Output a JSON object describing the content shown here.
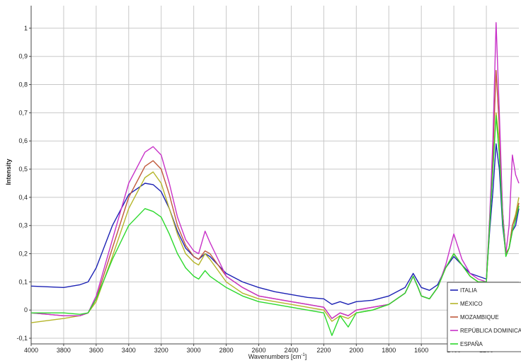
{
  "chart_data": {
    "type": "line",
    "xlabel": "Wavenumbers [cm",
    "xlabel_sup": "-1",
    "xlabel_close": "]",
    "ylabel": "Intensity",
    "xlim": [
      4000,
      1000
    ],
    "ylim": [
      -0.12,
      1.08
    ],
    "x_ticks": [
      4000,
      3800,
      3600,
      3400,
      3200,
      3000,
      2800,
      2600,
      2400,
      2200,
      2000,
      1800,
      1600,
      1400,
      1200
    ],
    "x_tick_labels": [
      "4000",
      "3800",
      "3600",
      "3400",
      "3200",
      "3000",
      "2800",
      "2600",
      "2400",
      "2200",
      "2000",
      "1800",
      "1600",
      "1400",
      "1200"
    ],
    "y_ticks": [
      -0.1,
      0,
      0.1,
      0.2,
      0.3,
      0.4,
      0.5,
      0.6,
      0.7,
      0.8,
      0.9,
      1
    ],
    "y_tick_labels": [
      "-0,1",
      "0",
      "0,1",
      "0,2",
      "0,3",
      "0,4",
      "0,5",
      "0,6",
      "0,7",
      "0,8",
      "0,9",
      "1"
    ],
    "grid": true,
    "legend_position": "bottom-right",
    "series": [
      {
        "name": "ITALIA",
        "color": "#1c22b4",
        "x": [
          4000,
          3800,
          3700,
          3650,
          3600,
          3500,
          3400,
          3300,
          3250,
          3200,
          3150,
          3100,
          3050,
          3000,
          2970,
          2930,
          2900,
          2850,
          2800,
          2700,
          2600,
          2500,
          2400,
          2300,
          2200,
          2150,
          2100,
          2050,
          2000,
          1900,
          1800,
          1700,
          1650,
          1620,
          1600,
          1550,
          1500,
          1450,
          1400,
          1350,
          1300,
          1250,
          1200,
          1180,
          1160,
          1140,
          1120,
          1100,
          1080,
          1060,
          1040,
          1020,
          1000
        ],
        "y": [
          0.085,
          0.08,
          0.09,
          0.1,
          0.15,
          0.3,
          0.41,
          0.45,
          0.445,
          0.42,
          0.36,
          0.28,
          0.22,
          0.19,
          0.18,
          0.2,
          0.19,
          0.16,
          0.13,
          0.1,
          0.08,
          0.065,
          0.055,
          0.045,
          0.04,
          0.02,
          0.03,
          0.02,
          0.03,
          0.035,
          0.05,
          0.08,
          0.13,
          0.1,
          0.08,
          0.07,
          0.09,
          0.15,
          0.19,
          0.16,
          0.13,
          0.12,
          0.11,
          0.28,
          0.42,
          0.59,
          0.5,
          0.3,
          0.2,
          0.22,
          0.28,
          0.3,
          0.36
        ]
      },
      {
        "name": "MÉXICO",
        "color": "#b5b52a",
        "x": [
          4000,
          3800,
          3700,
          3650,
          3600,
          3500,
          3400,
          3300,
          3250,
          3200,
          3150,
          3100,
          3050,
          3000,
          2970,
          2930,
          2900,
          2850,
          2800,
          2700,
          2600,
          2500,
          2400,
          2300,
          2200,
          2150,
          2100,
          2050,
          2000,
          1900,
          1800,
          1700,
          1650,
          1620,
          1600,
          1550,
          1500,
          1450,
          1400,
          1350,
          1300,
          1250,
          1200,
          1180,
          1160,
          1140,
          1120,
          1100,
          1080,
          1060,
          1040,
          1020,
          1000
        ],
        "y": [
          -0.045,
          -0.03,
          -0.02,
          -0.01,
          0.03,
          0.19,
          0.36,
          0.47,
          0.49,
          0.45,
          0.36,
          0.27,
          0.2,
          0.17,
          0.16,
          0.2,
          0.18,
          0.14,
          0.1,
          0.06,
          0.04,
          0.03,
          0.02,
          0.01,
          0.0,
          -0.04,
          -0.02,
          -0.03,
          -0.01,
          0.0,
          0.02,
          0.06,
          0.12,
          0.08,
          0.05,
          0.04,
          0.08,
          0.15,
          0.2,
          0.16,
          0.12,
          0.1,
          0.1,
          0.3,
          0.5,
          0.7,
          0.6,
          0.35,
          0.2,
          0.22,
          0.3,
          0.34,
          0.4
        ]
      },
      {
        "name": "MOZAMBIQUE",
        "color": "#c05a3c",
        "x": [
          4000,
          3800,
          3700,
          3650,
          3600,
          3500,
          3400,
          3300,
          3250,
          3200,
          3150,
          3100,
          3050,
          3000,
          2970,
          2930,
          2900,
          2850,
          2800,
          2700,
          2600,
          2500,
          2400,
          2300,
          2200,
          2150,
          2100,
          2050,
          2000,
          1900,
          1800,
          1700,
          1650,
          1620,
          1600,
          1550,
          1500,
          1450,
          1400,
          1350,
          1300,
          1250,
          1200,
          1180,
          1160,
          1140,
          1120,
          1100,
          1080,
          1060,
          1040,
          1020,
          1000
        ],
        "y": [
          -0.01,
          -0.02,
          -0.02,
          -0.01,
          0.04,
          0.22,
          0.4,
          0.51,
          0.53,
          0.5,
          0.41,
          0.3,
          0.23,
          0.19,
          0.18,
          0.21,
          0.2,
          0.16,
          0.12,
          0.08,
          0.05,
          0.04,
          0.03,
          0.02,
          0.01,
          -0.03,
          -0.01,
          -0.02,
          0.0,
          0.01,
          0.02,
          0.06,
          0.12,
          0.08,
          0.05,
          0.04,
          0.08,
          0.15,
          0.2,
          0.16,
          0.12,
          0.1,
          0.1,
          0.32,
          0.55,
          0.85,
          0.65,
          0.35,
          0.2,
          0.22,
          0.3,
          0.33,
          0.38
        ]
      },
      {
        "name": "REPÚBLICA DOMINICANA",
        "color": "#c832c8",
        "x": [
          4000,
          3800,
          3700,
          3650,
          3600,
          3500,
          3400,
          3300,
          3250,
          3200,
          3150,
          3100,
          3050,
          3000,
          2970,
          2930,
          2900,
          2850,
          2800,
          2700,
          2600,
          2500,
          2400,
          2300,
          2200,
          2150,
          2100,
          2050,
          2000,
          1900,
          1800,
          1700,
          1650,
          1620,
          1600,
          1550,
          1500,
          1450,
          1400,
          1350,
          1300,
          1250,
          1200,
          1180,
          1160,
          1140,
          1120,
          1100,
          1080,
          1060,
          1040,
          1020,
          1000
        ],
        "y": [
          -0.01,
          -0.02,
          -0.02,
          -0.01,
          0.05,
          0.25,
          0.45,
          0.56,
          0.58,
          0.55,
          0.45,
          0.33,
          0.25,
          0.21,
          0.2,
          0.28,
          0.24,
          0.18,
          0.12,
          0.08,
          0.05,
          0.04,
          0.03,
          0.02,
          0.01,
          -0.03,
          -0.01,
          -0.02,
          0.0,
          0.01,
          0.02,
          0.06,
          0.12,
          0.08,
          0.05,
          0.04,
          0.08,
          0.16,
          0.27,
          0.18,
          0.13,
          0.11,
          0.1,
          0.33,
          0.6,
          1.02,
          0.7,
          0.35,
          0.2,
          0.3,
          0.55,
          0.48,
          0.45
        ]
      },
      {
        "name": "ESPAÑA",
        "color": "#2cd92c",
        "x": [
          4000,
          3800,
          3700,
          3650,
          3600,
          3500,
          3400,
          3300,
          3250,
          3200,
          3150,
          3100,
          3050,
          3000,
          2970,
          2930,
          2900,
          2850,
          2800,
          2700,
          2600,
          2500,
          2400,
          2300,
          2200,
          2150,
          2100,
          2050,
          2000,
          1900,
          1800,
          1700,
          1650,
          1620,
          1600,
          1550,
          1500,
          1450,
          1400,
          1350,
          1300,
          1250,
          1200,
          1180,
          1160,
          1140,
          1120,
          1100,
          1080,
          1060,
          1040,
          1020,
          1000
        ],
        "y": [
          -0.01,
          -0.01,
          -0.015,
          -0.01,
          0.04,
          0.18,
          0.3,
          0.36,
          0.35,
          0.33,
          0.27,
          0.2,
          0.15,
          0.12,
          0.11,
          0.14,
          0.12,
          0.1,
          0.08,
          0.05,
          0.03,
          0.02,
          0.01,
          0.0,
          -0.01,
          -0.09,
          -0.02,
          -0.06,
          -0.01,
          0.0,
          0.02,
          0.06,
          0.12,
          0.08,
          0.05,
          0.04,
          0.08,
          0.15,
          0.2,
          0.16,
          0.12,
          0.1,
          0.1,
          0.3,
          0.5,
          0.69,
          0.55,
          0.32,
          0.19,
          0.22,
          0.28,
          0.32,
          0.37
        ]
      }
    ]
  }
}
